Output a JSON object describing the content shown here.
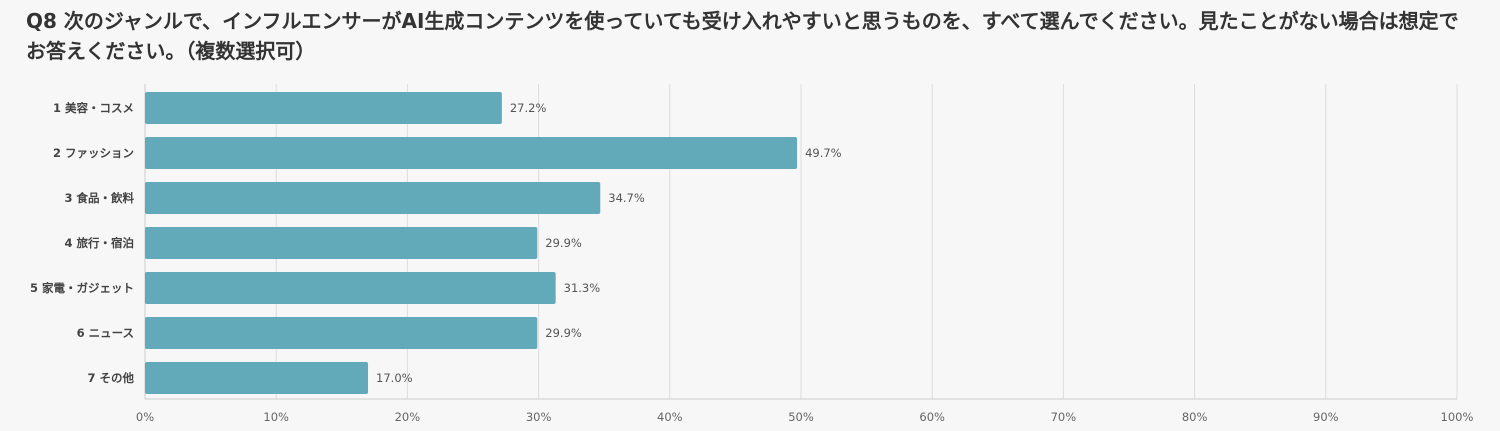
{
  "question": {
    "title": "Q8 次のジャンルで、インフルエンサーがAI生成コンテンツを使っていても受け入れやすいと思うものを、すべて選んでください。見たことがない場合は想定でお答えください。（複数選択可）"
  },
  "chart_data": {
    "type": "bar",
    "orientation": "horizontal",
    "categories": [
      "1 美容・コスメ",
      "2 ファッション",
      "3 食品・飲料",
      "4 旅行・宿泊",
      "5 家電・ガジェット",
      "6 ニュース",
      "7 その他"
    ],
    "values": [
      27.2,
      49.7,
      34.7,
      29.9,
      31.3,
      29.9,
      17.0
    ],
    "value_labels": [
      "27.2%",
      "49.7%",
      "34.7%",
      "29.9%",
      "31.3%",
      "29.9%",
      "17.0%"
    ],
    "xlim": [
      0,
      100
    ],
    "x_ticks": [
      0,
      10,
      20,
      30,
      40,
      50,
      60,
      70,
      80,
      90,
      100
    ],
    "x_tick_labels": [
      "0%",
      "10%",
      "20%",
      "30%",
      "40%",
      "50%",
      "60%",
      "70%",
      "80%",
      "90%",
      "100%"
    ],
    "grid": true,
    "legend": "none",
    "colors": {
      "bar": "#62a9ba",
      "grid": "#dddddd",
      "axis": "#cccccc"
    }
  }
}
